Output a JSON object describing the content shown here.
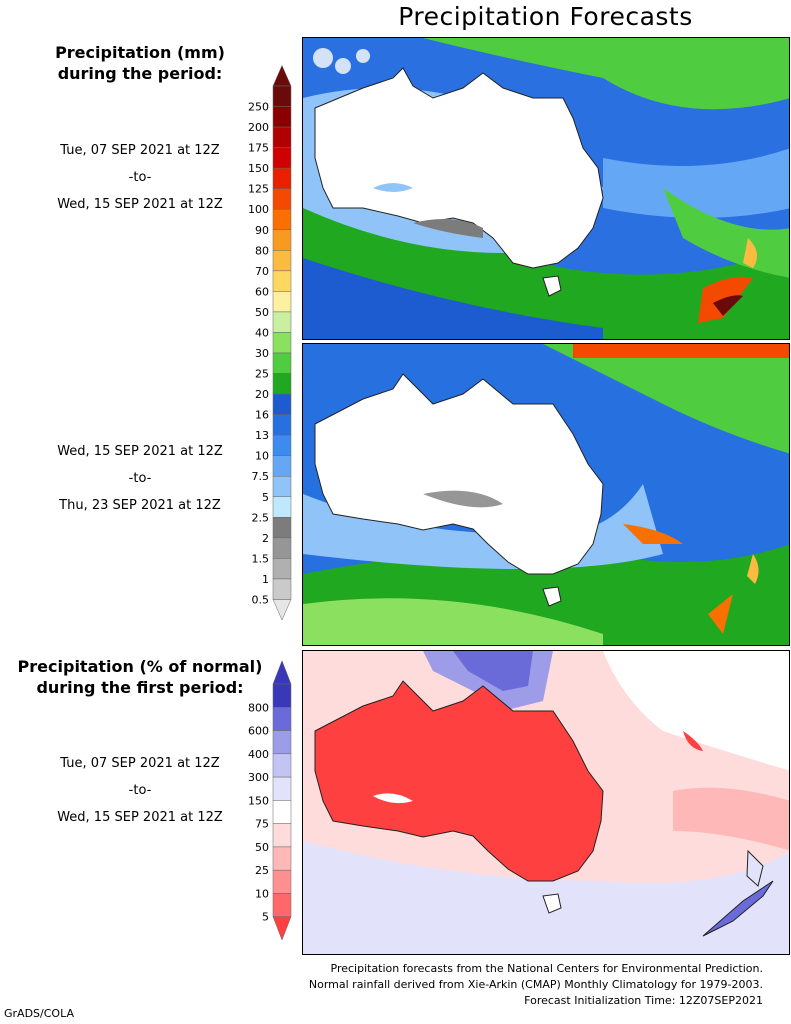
{
  "title": "Precipitation Forecasts",
  "colorbar_mm": {
    "header_line1": "Precipitation (mm)",
    "header_line2": "during the period:",
    "ticks": [
      "250",
      "200",
      "175",
      "150",
      "125",
      "100",
      "90",
      "80",
      "70",
      "60",
      "50",
      "40",
      "30",
      "25",
      "20",
      "16",
      "13",
      "10",
      "7.5",
      "5",
      "2.5",
      "2",
      "1.5",
      "1",
      "0.5"
    ],
    "colors": [
      "#6e0f0f",
      "#8a0000",
      "#a80000",
      "#c40000",
      "#e01000",
      "#f03000",
      "#f55a00",
      "#f57c00",
      "#f8a020",
      "#fbc040",
      "#fde080",
      "#fff4a0",
      "#c8f0a0",
      "#90e060",
      "#50d040",
      "#20a820",
      "#1e58d0",
      "#2a70e0",
      "#3c88f0",
      "#5ca0f5",
      "#80b8f8",
      "#b0dcfb",
      "#d0f4ff",
      "#808080",
      "#999999",
      "#b0b0b0",
      "#c8c8c8",
      "#dcdcdc"
    ],
    "legend_colors": [
      "#6a0a0a",
      "#8a0000",
      "#b00000",
      "#d00000",
      "#e82000",
      "#f44a00",
      "#f87000",
      "#f89a20",
      "#fbba40",
      "#fcd860",
      "#fdf0a0",
      "#c8f0a0",
      "#8ce060",
      "#50cc40",
      "#20a820",
      "#1c5cd0",
      "#2670e0",
      "#3c8cf0",
      "#64a8f5",
      "#90c4f8",
      "#c0e8fc",
      "#7c7c7c",
      "#969696",
      "#b0b0b0",
      "#cacaca",
      "#e6e6e6"
    ]
  },
  "colorbar_pct": {
    "header_line1": "Precipitation (% of normal)",
    "header_line2": "during the first period:",
    "ticks": [
      "800",
      "600",
      "400",
      "300",
      "150",
      "75",
      "50",
      "25",
      "10",
      "5"
    ],
    "legend_colors": [
      "#3838b8",
      "#6a6ad8",
      "#9c9ce8",
      "#c4c4f4",
      "#e2e2fa",
      "#ffffff",
      "#ffdcdc",
      "#ffb8b8",
      "#ff9090",
      "#ff6868",
      "#ff4040"
    ]
  },
  "periods": [
    {
      "start": "Tue, 07 SEP 2021 at 12Z",
      "sep": "-to-",
      "end": "Wed, 15 SEP 2021 at 12Z"
    },
    {
      "start": "Wed, 15 SEP 2021 at 12Z",
      "sep": "-to-",
      "end": "Thu, 23 SEP 2021 at 12Z"
    },
    {
      "start": "Tue, 07 SEP 2021 at 12Z",
      "sep": "-to-",
      "end": "Wed, 15 SEP 2021 at 12Z"
    }
  ],
  "footer": {
    "line1": "Precipitation forecasts from the National Centers for Environmental Prediction.",
    "line2": "Normal rainfall derived from Xie-Arkin (CMAP) Monthly Climatology for 1979-2003.",
    "line3": "Forecast Initialization Time: 12Z07SEP2021"
  },
  "credit": "GrADS/COLA"
}
